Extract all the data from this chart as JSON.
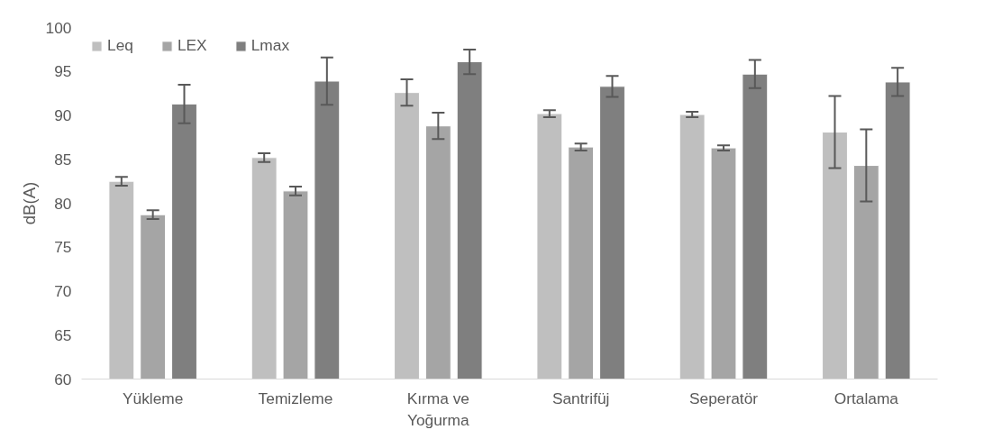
{
  "chart_data": {
    "type": "bar",
    "ylabel": "dB(A)",
    "categories": [
      "Yükleme",
      "Temizleme",
      "Kırma ve Yoğurma",
      "Santrifüj",
      "Seperatör",
      "Ortalama"
    ],
    "series": [
      {
        "name": "Leq",
        "color": "#bfbfbf",
        "values": [
          82.5,
          85.2,
          92.6,
          90.2,
          90.1,
          88.1
        ],
        "errors": [
          0.5,
          0.5,
          1.5,
          0.4,
          0.3,
          4.1
        ]
      },
      {
        "name": "LEX",
        "color": "#a5a5a5",
        "values": [
          78.7,
          81.4,
          88.8,
          86.4,
          86.3,
          84.3
        ],
        "errors": [
          0.5,
          0.5,
          1.5,
          0.4,
          0.3,
          4.1
        ]
      },
      {
        "name": "Lmax",
        "color": "#7f7f7f",
        "values": [
          91.3,
          93.9,
          96.1,
          93.3,
          94.7,
          93.8
        ],
        "errors": [
          2.2,
          2.7,
          1.4,
          1.2,
          1.6,
          1.6
        ]
      }
    ],
    "ylim": [
      60,
      100
    ],
    "yticks": [
      60,
      65,
      70,
      75,
      80,
      85,
      90,
      95,
      100
    ],
    "grid": false,
    "legend": "top left"
  }
}
